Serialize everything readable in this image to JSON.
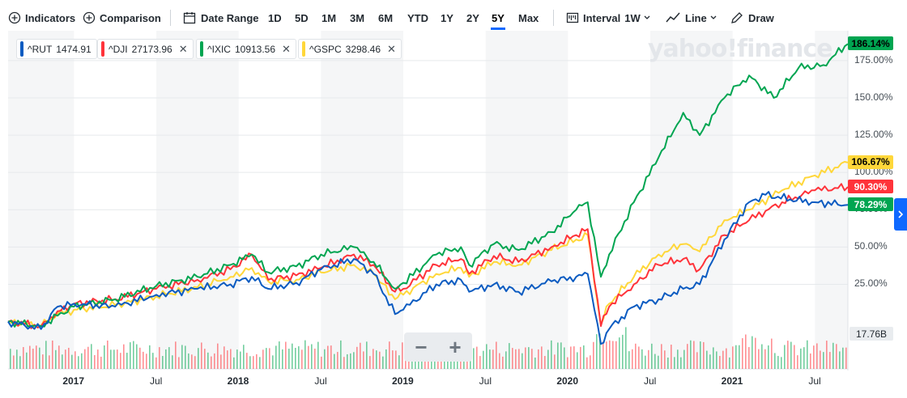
{
  "toolbar": {
    "indicators_label": "Indicators",
    "comparison_label": "Comparison",
    "date_range_label": "Date Range",
    "ranges": [
      "1D",
      "5D",
      "1M",
      "3M",
      "6M",
      "YTD",
      "1Y",
      "2Y",
      "5Y",
      "Max"
    ],
    "active_range": "5Y",
    "interval_label": "Interval",
    "interval_value": "1W",
    "chart_type_label": "Line",
    "draw_label": "Draw"
  },
  "watermark": "yahoo!finance",
  "legend": [
    {
      "symbol": "^RUT",
      "value": "1474.91",
      "color": "#0b5bc1",
      "removable": false
    },
    {
      "symbol": "^DJI",
      "value": "27173.96",
      "color": "#ff333a",
      "removable": true
    },
    {
      "symbol": "^IXIC",
      "value": "10913.56",
      "color": "#00a551",
      "removable": true
    },
    {
      "symbol": "^GSPC",
      "value": "3298.46",
      "color": "#ffd73a",
      "removable": true
    }
  ],
  "badges": [
    {
      "text": "186.14%",
      "value": 186.14,
      "bg": "#00a551",
      "fg": "#000000"
    },
    {
      "text": "106.67%",
      "value": 106.67,
      "bg": "#ffd73a",
      "fg": "#000000"
    },
    {
      "text": "90.30%",
      "value": 90.3,
      "bg": "#ff333a",
      "fg": "#ffffff"
    },
    {
      "text": "78.29%",
      "value": 78.29,
      "bg": "#00a551",
      "fg": "#ffffff"
    }
  ],
  "volume_badge": "17.76B",
  "chart_data": {
    "type": "line",
    "y_unit": "% change",
    "ylim": [
      -10,
      195
    ],
    "yticks": [
      25,
      50,
      75,
      100,
      125,
      150,
      175
    ],
    "ytick_labels": [
      "25.00%",
      "50.00%",
      "75.00%",
      "100.00%",
      "125.00%",
      "150.00%",
      "175.00%"
    ],
    "x_range": [
      2016.6,
      2021.7
    ],
    "x_ticks": [
      {
        "x": 2017.0,
        "label": "2017",
        "year": true
      },
      {
        "x": 2017.5,
        "label": "Jul",
        "year": false
      },
      {
        "x": 2018.0,
        "label": "2018",
        "year": true
      },
      {
        "x": 2018.5,
        "label": "Jul",
        "year": false
      },
      {
        "x": 2019.0,
        "label": "2019",
        "year": true
      },
      {
        "x": 2019.5,
        "label": "Jul",
        "year": false
      },
      {
        "x": 2020.0,
        "label": "2020",
        "year": true
      },
      {
        "x": 2020.5,
        "label": "Jul",
        "year": false
      },
      {
        "x": 2021.0,
        "label": "2021",
        "year": true
      },
      {
        "x": 2021.5,
        "label": "Jul",
        "year": false
      }
    ],
    "series": [
      {
        "name": "^GSPC",
        "color": "#ffd73a",
        "points": [
          [
            2016.6,
            0
          ],
          [
            2016.8,
            -3
          ],
          [
            2016.9,
            5
          ],
          [
            2017.0,
            8
          ],
          [
            2017.25,
            11
          ],
          [
            2017.5,
            17
          ],
          [
            2017.75,
            23
          ],
          [
            2017.95,
            30
          ],
          [
            2018.08,
            36
          ],
          [
            2018.18,
            27
          ],
          [
            2018.35,
            28
          ],
          [
            2018.5,
            33
          ],
          [
            2018.7,
            38
          ],
          [
            2018.82,
            32
          ],
          [
            2018.95,
            15
          ],
          [
            2019.0,
            18
          ],
          [
            2019.2,
            32
          ],
          [
            2019.35,
            36
          ],
          [
            2019.4,
            30
          ],
          [
            2019.55,
            40
          ],
          [
            2019.7,
            38
          ],
          [
            2019.9,
            48
          ],
          [
            2020.05,
            55
          ],
          [
            2020.12,
            58
          ],
          [
            2020.2,
            -2
          ],
          [
            2020.25,
            12
          ],
          [
            2020.4,
            30
          ],
          [
            2020.55,
            45
          ],
          [
            2020.7,
            52
          ],
          [
            2020.8,
            47
          ],
          [
            2020.95,
            68
          ],
          [
            2021.1,
            75
          ],
          [
            2021.3,
            88
          ],
          [
            2021.5,
            98
          ],
          [
            2021.7,
            106.67
          ]
        ]
      },
      {
        "name": "^DJI",
        "color": "#ff333a",
        "points": [
          [
            2016.6,
            0
          ],
          [
            2016.8,
            -3
          ],
          [
            2016.9,
            7
          ],
          [
            2017.0,
            12
          ],
          [
            2017.25,
            15
          ],
          [
            2017.5,
            22
          ],
          [
            2017.75,
            28
          ],
          [
            2017.95,
            35
          ],
          [
            2018.08,
            45
          ],
          [
            2018.18,
            28
          ],
          [
            2018.35,
            31
          ],
          [
            2018.5,
            36
          ],
          [
            2018.7,
            45
          ],
          [
            2018.82,
            38
          ],
          [
            2018.95,
            20
          ],
          [
            2019.0,
            22
          ],
          [
            2019.2,
            38
          ],
          [
            2019.35,
            42
          ],
          [
            2019.4,
            32
          ],
          [
            2019.55,
            44
          ],
          [
            2019.7,
            40
          ],
          [
            2019.9,
            50
          ],
          [
            2020.05,
            58
          ],
          [
            2020.12,
            62
          ],
          [
            2020.2,
            -3
          ],
          [
            2020.25,
            10
          ],
          [
            2020.4,
            25
          ],
          [
            2020.55,
            38
          ],
          [
            2020.7,
            42
          ],
          [
            2020.8,
            35
          ],
          [
            2020.95,
            58
          ],
          [
            2021.1,
            68
          ],
          [
            2021.3,
            80
          ],
          [
            2021.5,
            88
          ],
          [
            2021.7,
            90.3
          ]
        ]
      },
      {
        "name": "^IXIC",
        "color": "#00a551",
        "points": [
          [
            2016.6,
            0
          ],
          [
            2016.8,
            -3
          ],
          [
            2016.9,
            4
          ],
          [
            2017.0,
            10
          ],
          [
            2017.25,
            15
          ],
          [
            2017.5,
            24
          ],
          [
            2017.75,
            30
          ],
          [
            2017.95,
            38
          ],
          [
            2018.08,
            45
          ],
          [
            2018.18,
            33
          ],
          [
            2018.35,
            37
          ],
          [
            2018.5,
            45
          ],
          [
            2018.7,
            50
          ],
          [
            2018.82,
            40
          ],
          [
            2018.95,
            22
          ],
          [
            2019.0,
            26
          ],
          [
            2019.2,
            45
          ],
          [
            2019.35,
            50
          ],
          [
            2019.4,
            38
          ],
          [
            2019.55,
            52
          ],
          [
            2019.7,
            48
          ],
          [
            2019.9,
            60
          ],
          [
            2020.05,
            75
          ],
          [
            2020.12,
            80
          ],
          [
            2020.2,
            30
          ],
          [
            2020.25,
            45
          ],
          [
            2020.4,
            80
          ],
          [
            2020.55,
            110
          ],
          [
            2020.7,
            140
          ],
          [
            2020.8,
            125
          ],
          [
            2020.95,
            150
          ],
          [
            2021.1,
            165
          ],
          [
            2021.25,
            150
          ],
          [
            2021.4,
            170
          ],
          [
            2021.55,
            172
          ],
          [
            2021.7,
            186.14
          ]
        ]
      },
      {
        "name": "^RUT",
        "color": "#0b5bc1",
        "points": [
          [
            2016.6,
            0
          ],
          [
            2016.8,
            -5
          ],
          [
            2016.9,
            10
          ],
          [
            2017.0,
            12
          ],
          [
            2017.25,
            10
          ],
          [
            2017.5,
            18
          ],
          [
            2017.75,
            22
          ],
          [
            2017.95,
            25
          ],
          [
            2018.08,
            30
          ],
          [
            2018.18,
            22
          ],
          [
            2018.35,
            26
          ],
          [
            2018.5,
            35
          ],
          [
            2018.7,
            42
          ],
          [
            2018.82,
            32
          ],
          [
            2018.95,
            5
          ],
          [
            2019.0,
            8
          ],
          [
            2019.2,
            25
          ],
          [
            2019.35,
            28
          ],
          [
            2019.4,
            20
          ],
          [
            2019.55,
            25
          ],
          [
            2019.7,
            20
          ],
          [
            2019.9,
            27
          ],
          [
            2020.05,
            30
          ],
          [
            2020.12,
            32
          ],
          [
            2020.2,
            -15
          ],
          [
            2020.25,
            -5
          ],
          [
            2020.4,
            10
          ],
          [
            2020.55,
            15
          ],
          [
            2020.7,
            22
          ],
          [
            2020.8,
            25
          ],
          [
            2020.95,
            55
          ],
          [
            2021.1,
            80
          ],
          [
            2021.2,
            85
          ],
          [
            2021.35,
            82
          ],
          [
            2021.5,
            80
          ],
          [
            2021.7,
            78.29
          ]
        ]
      }
    ],
    "volume": {
      "unit": "B",
      "latest": 17.76,
      "weekly": [
        {
          "x": 2020.22,
          "value": 28
        }
      ]
    }
  }
}
